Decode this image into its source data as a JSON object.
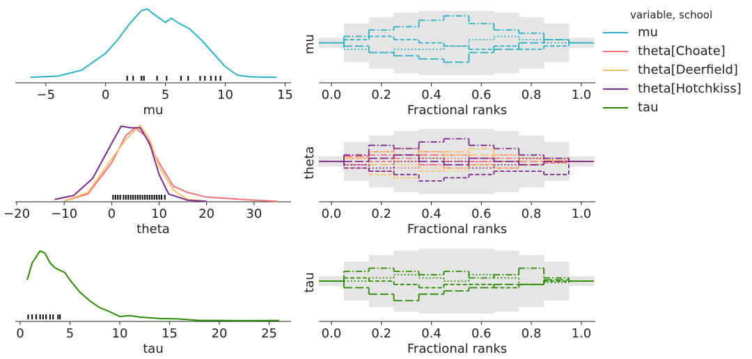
{
  "legend": {
    "title": "variable, school"
  },
  "chart_data": [
    {
      "type": "line",
      "xlabel": "mu",
      "xlim": [
        -7.55,
        15.5
      ],
      "ylim": [
        0,
        0.11
      ],
      "xticks": [
        {
          "value": -5,
          "label": "−5"
        },
        0,
        5,
        10,
        15
      ],
      "series": [
        {
          "name": "mu",
          "color": "#2ab0c5",
          "x": [
            -6.3,
            -4,
            -2,
            0,
            1,
            2,
            3,
            3.5,
            4,
            5,
            5.5,
            6,
            7,
            8,
            9,
            10,
            11,
            12,
            14.3
          ],
          "values": [
            0.0076,
            0.0095,
            0.018,
            0.042,
            0.061,
            0.084,
            0.103,
            0.105,
            0.098,
            0.086,
            0.092,
            0.086,
            0.077,
            0.061,
            0.042,
            0.023,
            0.011,
            0.0085,
            0.0076
          ]
        }
      ],
      "rug": [
        1.8,
        2.3,
        3,
        3.2,
        4.3,
        5.1,
        6.3,
        6.9,
        7.9,
        8.3,
        8.8,
        9.2,
        9.6
      ]
    },
    {
      "type": "rank",
      "xlabel": "Fractional ranks",
      "ylabel": "mu",
      "xlim": [
        -0.05,
        1.056
      ],
      "ylim": [
        -0.62,
        0.58
      ],
      "xticks": [
        {
          "value": 0,
          "label": "0.0"
        },
        {
          "value": 0.2,
          "label": "0.2"
        },
        {
          "value": 0.4,
          "label": "0.4"
        },
        {
          "value": 0.6,
          "label": "0.6"
        },
        {
          "value": 0.8,
          "label": "0.8"
        },
        {
          "value": 1,
          "label": "1.0"
        }
      ],
      "x": [
        0,
        0.1,
        0.2,
        0.3,
        0.4,
        0.5,
        0.6,
        0.7,
        0.8,
        0.9,
        1.0
      ],
      "band_color": "#e5e5e5",
      "band_upper": [
        0.08,
        0.3,
        0.4,
        0.47,
        0.5,
        0.5,
        0.5,
        0.47,
        0.4,
        0.3,
        0.08
      ],
      "band_lower": [
        -0.08,
        -0.3,
        -0.4,
        -0.47,
        -0.5,
        -0.5,
        -0.5,
        -0.47,
        -0.4,
        -0.3,
        -0.08
      ],
      "series": [
        {
          "color": "#2ab0c5",
          "linestyle": "dashdot",
          "values": [
            0,
            0.1,
            0.2,
            0.25,
            0.35,
            0.42,
            0.3,
            0.2,
            0.15,
            0.05,
            0
          ]
        },
        {
          "color": "#2ab0c5",
          "linestyle": "dashed",
          "values": [
            0,
            0.05,
            0.1,
            0.05,
            0,
            -0.05,
            -0.1,
            -0.05,
            -0.1,
            -0.05,
            0
          ]
        },
        {
          "color": "#2ab0c5",
          "linestyle": "longdash",
          "values": [
            0,
            -0.05,
            -0.15,
            -0.2,
            -0.25,
            -0.3,
            -0.15,
            -0.1,
            0,
            0.05,
            0
          ]
        },
        {
          "color": "#2ab0c5",
          "linestyle": "dotted",
          "values": [
            0,
            -0.1,
            -0.15,
            -0.1,
            -0.1,
            -0.05,
            0.05,
            0.1,
            0.05,
            0,
            0
          ]
        }
      ]
    },
    {
      "type": "line",
      "xlabel": "theta",
      "xlim": [
        -20.3,
        37.8
      ],
      "ylim": [
        0,
        0.1
      ],
      "xticks": [
        {
          "value": -20,
          "label": "−20"
        },
        {
          "value": -10,
          "label": "−10"
        },
        0,
        10,
        20,
        30
      ],
      "series": [
        {
          "name": "theta[Choate]",
          "color": "#f07078",
          "x": [
            -10,
            -5,
            0,
            3,
            5,
            7,
            10,
            13,
            16,
            20,
            25,
            30,
            35
          ],
          "values": [
            0.001,
            0.01,
            0.05,
            0.085,
            0.095,
            0.085,
            0.05,
            0.02,
            0.012,
            0.006,
            0.004,
            0.002,
            0.0005
          ]
        },
        {
          "name": "theta[Deerfield]",
          "color": "#fdbe6e",
          "x": [
            -10,
            -5,
            0,
            3,
            6,
            8,
            10,
            13,
            16,
            20
          ],
          "values": [
            0.001,
            0.012,
            0.055,
            0.08,
            0.098,
            0.08,
            0.045,
            0.015,
            0.003,
            0.0005
          ]
        },
        {
          "name": "theta[Hotchkiss]",
          "color": "#7b2a8c",
          "x": [
            -12,
            -8,
            -4,
            0,
            2,
            4,
            6,
            8,
            10,
            12,
            16,
            20
          ],
          "values": [
            0.003,
            0.008,
            0.03,
            0.075,
            0.097,
            0.095,
            0.095,
            0.075,
            0.035,
            0.01,
            0.002,
            0.0005
          ]
        }
      ],
      "rug": [
        0.3,
        0.8,
        1.3,
        1.8,
        2.5,
        3,
        3.5,
        4,
        4.5,
        5,
        5.5,
        6,
        6.5,
        7,
        7.5,
        8,
        8.5,
        9,
        9.5,
        10,
        10.5,
        11.2
      ]
    },
    {
      "type": "rank",
      "xlabel": "Fractional ranks",
      "ylabel": "theta",
      "xlim": [
        -0.05,
        1.056
      ],
      "ylim": [
        -0.62,
        0.58
      ],
      "xticks": [
        {
          "value": 0,
          "label": "0.0"
        },
        {
          "value": 0.2,
          "label": "0.2"
        },
        {
          "value": 0.4,
          "label": "0.4"
        },
        {
          "value": 0.6,
          "label": "0.6"
        },
        {
          "value": 0.8,
          "label": "0.8"
        },
        {
          "value": 1,
          "label": "1.0"
        }
      ],
      "x": [
        0,
        0.1,
        0.2,
        0.3,
        0.4,
        0.5,
        0.6,
        0.7,
        0.8,
        0.9,
        1.0
      ],
      "band_color": "#e5e5e5",
      "band_upper": [
        0.08,
        0.3,
        0.4,
        0.47,
        0.5,
        0.5,
        0.5,
        0.47,
        0.4,
        0.3,
        0.08
      ],
      "band_lower": [
        -0.08,
        -0.3,
        -0.4,
        -0.47,
        -0.5,
        -0.5,
        -0.5,
        -0.47,
        -0.4,
        -0.3,
        -0.08
      ],
      "series": [
        {
          "color": "#f07078",
          "linestyle": "dashdot",
          "values": [
            0,
            0.05,
            0.1,
            0.05,
            -0.05,
            -0.1,
            0,
            0.05,
            -0.05,
            0.02,
            0
          ]
        },
        {
          "color": "#f07078",
          "linestyle": "dashed",
          "values": [
            0,
            -0.05,
            0,
            0.1,
            0.15,
            0.1,
            0.05,
            0,
            0.05,
            -0.02,
            0
          ]
        },
        {
          "color": "#f07078",
          "linestyle": "longdash",
          "values": [
            0,
            0.08,
            0.15,
            0.2,
            0.1,
            0,
            -0.05,
            -0.1,
            0,
            0.05,
            0
          ]
        },
        {
          "color": "#f07078",
          "linestyle": "dotted",
          "values": [
            0,
            -0.1,
            -0.15,
            -0.1,
            -0.05,
            0.05,
            0,
            0.1,
            0,
            -0.02,
            0
          ]
        },
        {
          "color": "#fdbe6e",
          "linestyle": "dashdot",
          "values": [
            0,
            0.1,
            0.15,
            0.1,
            0.15,
            0.1,
            0.2,
            0.1,
            0.05,
            0,
            0
          ]
        },
        {
          "color": "#fdbe6e",
          "linestyle": "dashed",
          "values": [
            0,
            -0.1,
            -0.2,
            -0.25,
            -0.15,
            -0.1,
            -0.05,
            -0.1,
            -0.05,
            0,
            0
          ]
        },
        {
          "color": "#fdbe6e",
          "linestyle": "longdash",
          "values": [
            0,
            0.05,
            -0.05,
            0,
            0.05,
            0.15,
            0.1,
            0,
            0.05,
            0.02,
            0
          ]
        },
        {
          "color": "#fdbe6e",
          "linestyle": "dotted",
          "values": [
            0,
            0,
            0.05,
            -0.05,
            -0.1,
            -0.15,
            -0.1,
            -0.05,
            0,
            0,
            0
          ]
        },
        {
          "color": "#7b2a8c",
          "linestyle": "dashdot",
          "values": [
            0,
            0.1,
            0.25,
            0.2,
            0.3,
            0.35,
            0.25,
            0.2,
            0.1,
            0.05,
            0
          ]
        },
        {
          "color": "#7b2a8c",
          "linestyle": "dashed",
          "values": [
            0,
            -0.1,
            -0.15,
            -0.2,
            -0.3,
            -0.25,
            -0.2,
            -0.15,
            -0.15,
            -0.2,
            0
          ]
        },
        {
          "color": "#7b2a8c",
          "linestyle": "longdash",
          "values": [
            0,
            0,
            0.05,
            0.1,
            0,
            -0.05,
            0.05,
            0,
            -0.05,
            0,
            0
          ]
        },
        {
          "color": "#7b2a8c",
          "linestyle": "dotted",
          "values": [
            0,
            -0.05,
            -0.1,
            0,
            0.05,
            0,
            -0.1,
            -0.05,
            0.05,
            0,
            0
          ]
        }
      ]
    },
    {
      "type": "line",
      "xlabel": "tau",
      "xlim": [
        -0.49,
        27.2
      ],
      "ylim": [
        0,
        0.16
      ],
      "xticks": [
        0,
        5,
        10,
        15,
        20,
        25
      ],
      "series": [
        {
          "name": "tau",
          "color": "#2a8a00",
          "x": [
            0.7,
            1.2,
            2,
            2.5,
            3,
            3.5,
            4,
            4.5,
            5,
            6,
            7,
            8,
            9,
            10,
            11,
            12,
            14,
            16,
            18,
            20,
            22,
            26
          ],
          "values": [
            0.085,
            0.12,
            0.145,
            0.14,
            0.12,
            0.11,
            0.105,
            0.1,
            0.085,
            0.06,
            0.042,
            0.028,
            0.02,
            0.01,
            0.012,
            0.009,
            0.006,
            0.005,
            0.002,
            0.002,
            0.0015,
            0.002
          ]
        }
      ],
      "rug": [
        0.8,
        1.2,
        1.6,
        2,
        2.3,
        2.6,
        3,
        3.3,
        3.8,
        4
      ]
    },
    {
      "type": "rank",
      "xlabel": "Fractional ranks",
      "ylabel": "tau",
      "xlim": [
        -0.05,
        1.056
      ],
      "ylim": [
        -0.62,
        0.58
      ],
      "xticks": [
        {
          "value": 0,
          "label": "0.0"
        },
        {
          "value": 0.2,
          "label": "0.2"
        },
        {
          "value": 0.4,
          "label": "0.4"
        },
        {
          "value": 0.6,
          "label": "0.6"
        },
        {
          "value": 0.8,
          "label": "0.8"
        },
        {
          "value": 1,
          "label": "1.0"
        }
      ],
      "x": [
        0,
        0.1,
        0.2,
        0.3,
        0.4,
        0.5,
        0.6,
        0.7,
        0.8,
        0.9,
        1.0
      ],
      "band_color": "#e5e5e5",
      "band_upper": [
        0.08,
        0.3,
        0.4,
        0.47,
        0.5,
        0.5,
        0.5,
        0.47,
        0.4,
        0.3,
        0.08
      ],
      "band_lower": [
        -0.08,
        -0.3,
        -0.4,
        -0.47,
        -0.5,
        -0.5,
        -0.5,
        -0.47,
        -0.4,
        -0.3,
        -0.08
      ],
      "series": [
        {
          "color": "#2a8a00",
          "linestyle": "dashdot",
          "values": [
            0,
            0.15,
            0.2,
            0.15,
            0.1,
            0.15,
            0.05,
            0.1,
            0.2,
            0.05,
            0
          ]
        },
        {
          "color": "#2a8a00",
          "linestyle": "dashed",
          "values": [
            0,
            0.05,
            0,
            -0.05,
            -0.1,
            -0.05,
            -0.05,
            -0.1,
            -0.05,
            0,
            0
          ]
        },
        {
          "color": "#2a8a00",
          "linestyle": "longdash",
          "values": [
            0,
            -0.1,
            -0.2,
            -0.3,
            -0.2,
            -0.15,
            -0.1,
            -0.05,
            -0.05,
            0.02,
            0
          ]
        },
        {
          "color": "#2a8a00",
          "linestyle": "dotted",
          "values": [
            0,
            0,
            0.05,
            0.1,
            0.05,
            0,
            0.1,
            0.05,
            -0.05,
            -0.02,
            0
          ]
        }
      ]
    }
  ]
}
